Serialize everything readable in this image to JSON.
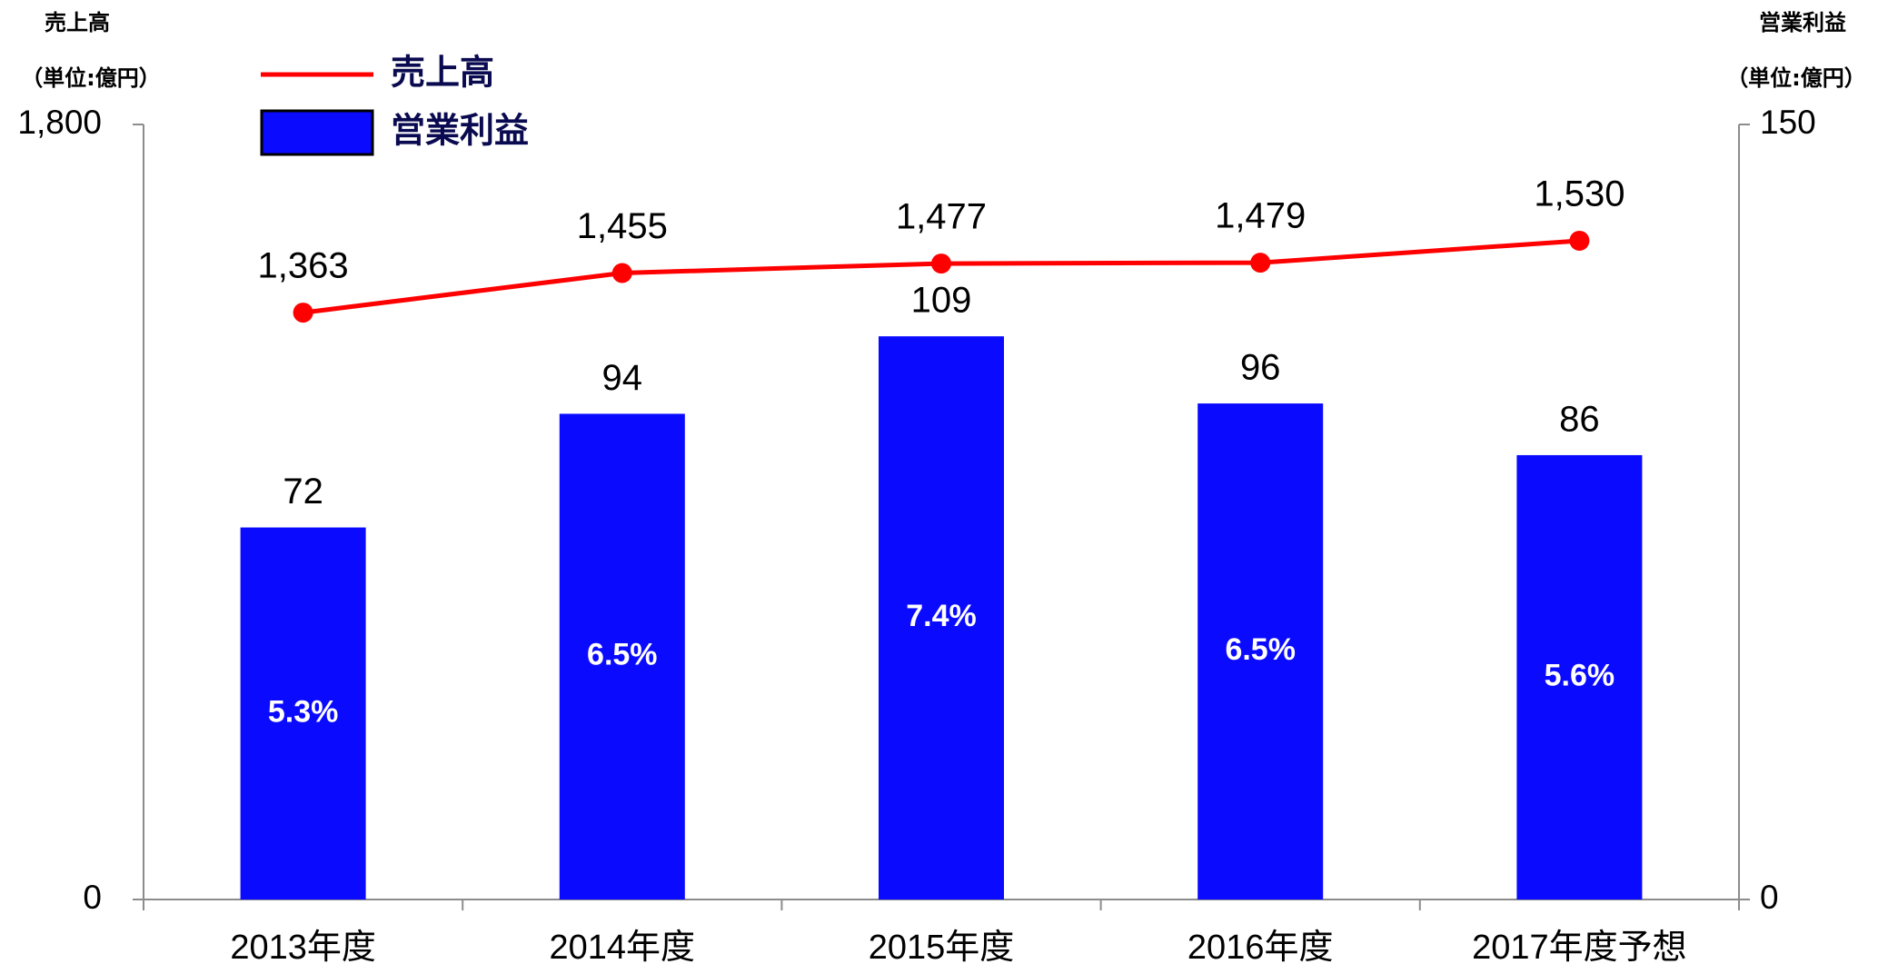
{
  "chart_data": {
    "type": "bar-line",
    "axis_label_left": "売上高",
    "axis_unit_left": "（単位:億円）",
    "axis_label_right": "営業利益",
    "axis_unit_right": "（単位:億円）",
    "categories": [
      "2013年度",
      "2014年度",
      "2015年度",
      "2016年度",
      "2017年度予想"
    ],
    "series": [
      {
        "name": "売上高",
        "type": "line",
        "color": "#ff0000",
        "values": [
          1363,
          1455,
          1477,
          1479,
          1530
        ],
        "value_labels": [
          "1,363",
          "1,455",
          "1,477",
          "1,479",
          "1,530"
        ]
      },
      {
        "name": "営業利益",
        "type": "bar",
        "axis": "y2",
        "color": "#0a0aff",
        "values": [
          72,
          94,
          109,
          96,
          86
        ],
        "bar_annotations": [
          "5.3%",
          "6.5%",
          "7.4%",
          "6.5%",
          "5.6%"
        ]
      }
    ],
    "ylim": [
      0,
      1800
    ],
    "yticks": [
      0,
      {
        "value": 1800,
        "label": "1,800"
      }
    ],
    "y2lim": [
      0,
      150
    ],
    "y2ticks": [
      0,
      150
    ]
  }
}
